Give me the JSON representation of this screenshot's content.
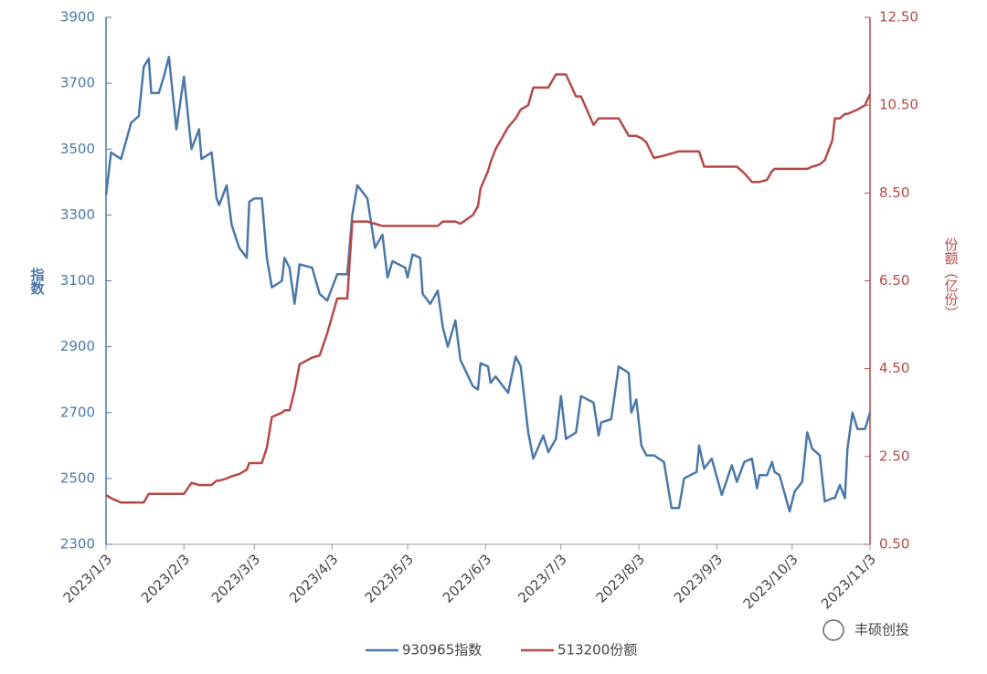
{
  "chart_data": {
    "type": "line",
    "y_label": "指数",
    "y2_label": "份额（亿份）",
    "watermark": "丰硕创投",
    "x": [
      "2023/1/3",
      "2023/1/5",
      "2023/1/9",
      "2023/1/13",
      "2023/1/16",
      "2023/1/18",
      "2023/1/20",
      "2023/1/21",
      "2023/1/24",
      "2023/1/26",
      "2023/1/28",
      "2023/1/31",
      "2023/2/3",
      "2023/2/6",
      "2023/2/9",
      "2023/2/10",
      "2023/2/14",
      "2023/2/16",
      "2023/2/17",
      "2023/2/20",
      "2023/2/22",
      "2023/2/25",
      "2023/2/28",
      "2023/3/1",
      "2023/3/3",
      "2023/3/6",
      "2023/3/8",
      "2023/3/10",
      "2023/3/14",
      "2023/3/15",
      "2023/3/17",
      "2023/3/19",
      "2023/3/21",
      "2023/3/26",
      "2023/3/29",
      "2023/4/1",
      "2023/4/3",
      "2023/4/5",
      "2023/4/9",
      "2023/4/11",
      "2023/4/13",
      "2023/4/17",
      "2023/4/20",
      "2023/4/23",
      "2023/4/25",
      "2023/4/27",
      "2023/5/2",
      "2023/5/3",
      "2023/5/5",
      "2023/5/8",
      "2023/5/9",
      "2023/5/12",
      "2023/5/15",
      "2023/5/17",
      "2023/5/19",
      "2023/5/22",
      "2023/5/24",
      "2023/5/29",
      "2023/5/31",
      "2023/6/1",
      "2023/6/4",
      "2023/6/5",
      "2023/6/7",
      "2023/6/12",
      "2023/6/15",
      "2023/6/17",
      "2023/6/20",
      "2023/6/22",
      "2023/6/26",
      "2023/6/28",
      "2023/7/1",
      "2023/7/3",
      "2023/7/5",
      "2023/7/9",
      "2023/7/11",
      "2023/7/16",
      "2023/7/18",
      "2023/7/19",
      "2023/7/23",
      "2023/7/26",
      "2023/7/30",
      "2023/7/31",
      "2023/8/2",
      "2023/8/4",
      "2023/8/6",
      "2023/8/9",
      "2023/8/13",
      "2023/8/16",
      "2023/8/19",
      "2023/8/21",
      "2023/8/26",
      "2023/8/27",
      "2023/8/29",
      "2023/9/1",
      "2023/9/5",
      "2023/9/9",
      "2023/9/11",
      "2023/9/14",
      "2023/9/17",
      "2023/9/19",
      "2023/9/20",
      "2023/9/23",
      "2023/9/25",
      "2023/9/26",
      "2023/9/28",
      "2023/10/2",
      "2023/10/4",
      "2023/10/7",
      "2023/10/9",
      "2023/10/11",
      "2023/10/14",
      "2023/10/16",
      "2023/10/19",
      "2023/10/20",
      "2023/10/22",
      "2023/10/24",
      "2023/10/25",
      "2023/10/27",
      "2023/10/29",
      "2023/11/1",
      "2023/11/3"
    ],
    "series": [
      {
        "name": "930965指数",
        "color": "#4a78a8",
        "values": [
          3360,
          3490,
          3470,
          3580,
          3600,
          3750,
          3775,
          3670,
          3670,
          3720,
          3780,
          3560,
          3720,
          3500,
          3560,
          3470,
          3490,
          3350,
          3330,
          3390,
          3270,
          3200,
          3170,
          3340,
          3350,
          3350,
          3170,
          3080,
          3100,
          3170,
          3140,
          3030,
          3150,
          3140,
          3060,
          3040,
          3080,
          3120,
          3120,
          3300,
          3390,
          3350,
          3200,
          3240,
          3110,
          3160,
          3140,
          3110,
          3180,
          3170,
          3060,
          3030,
          3070,
          2960,
          2900,
          2980,
          2860,
          2780,
          2770,
          2850,
          2840,
          2790,
          2810,
          2760,
          2870,
          2840,
          2640,
          2560,
          2630,
          2580,
          2620,
          2750,
          2620,
          2640,
          2750,
          2730,
          2630,
          2670,
          2680,
          2840,
          2820,
          2700,
          2740,
          2600,
          2570,
          2570,
          2550,
          2410,
          2410,
          2500,
          2520,
          2600,
          2530,
          2560,
          2450,
          2540,
          2490,
          2550,
          2560,
          2470,
          2510,
          2510,
          2550,
          2520,
          2510,
          2400,
          2460,
          2490,
          2640,
          2590,
          2570,
          2430,
          2440,
          2440,
          2480,
          2440,
          2590,
          2700,
          2650,
          2650,
          2700
        ]
      },
      {
        "name": "513200份额",
        "color": "#b5494a",
        "axis": "y2",
        "values": [
          1.62,
          1.55,
          1.45,
          1.45,
          1.45,
          1.45,
          1.65,
          1.65,
          1.65,
          1.65,
          1.65,
          1.65,
          1.65,
          1.9,
          1.85,
          1.85,
          1.85,
          1.95,
          1.95,
          2.0,
          2.05,
          2.1,
          2.2,
          2.35,
          2.35,
          2.35,
          2.7,
          3.4,
          3.5,
          3.55,
          3.55,
          4.0,
          4.6,
          4.75,
          4.8,
          5.3,
          5.7,
          6.1,
          6.1,
          7.85,
          7.85,
          7.85,
          7.8,
          7.75,
          7.75,
          7.75,
          7.75,
          7.75,
          7.75,
          7.75,
          7.75,
          7.75,
          7.75,
          7.85,
          7.85,
          7.85,
          7.8,
          8.0,
          8.2,
          8.6,
          9.0,
          9.2,
          9.5,
          10.0,
          10.2,
          10.4,
          10.5,
          10.9,
          10.9,
          10.9,
          11.2,
          11.2,
          11.2,
          10.7,
          10.7,
          10.05,
          10.2,
          10.2,
          10.2,
          10.2,
          9.8,
          9.8,
          9.8,
          9.75,
          9.65,
          9.3,
          9.35,
          9.4,
          9.45,
          9.45,
          9.45,
          9.45,
          9.1,
          9.1,
          9.1,
          9.1,
          9.1,
          8.95,
          8.75,
          8.75,
          8.75,
          8.8,
          9.0,
          9.05,
          9.05,
          9.05,
          9.05,
          9.05,
          9.05,
          9.1,
          9.15,
          9.25,
          9.7,
          10.2,
          10.2,
          10.3,
          10.3,
          10.35,
          10.4,
          10.5,
          10.75
        ]
      }
    ],
    "xlim": [
      "2023/1/3",
      "2023/11/3"
    ],
    "xticks": [
      "2023/1/3",
      "2023/2/3",
      "2023/3/3",
      "2023/4/3",
      "2023/5/3",
      "2023/6/3",
      "2023/7/3",
      "2023/8/3",
      "2023/9/3",
      "2023/10/3",
      "2023/11/3"
    ],
    "ylim": [
      2300,
      3900
    ],
    "yticks": [
      2300,
      2500,
      2700,
      2900,
      3100,
      3300,
      3500,
      3700,
      3900
    ],
    "y2lim": [
      0.5,
      12.5
    ],
    "y2ticks": [
      {
        "value": 0.5,
        "label": "0.50"
      },
      {
        "value": 2.5,
        "label": "2.50"
      },
      {
        "value": 4.5,
        "label": "4.50"
      },
      {
        "value": 6.5,
        "label": "6.50"
      },
      {
        "value": 8.5,
        "label": "8.50"
      },
      {
        "value": 10.5,
        "label": "10.50"
      },
      {
        "value": 12.5,
        "label": "12.50"
      }
    ],
    "legend": "bottom"
  }
}
